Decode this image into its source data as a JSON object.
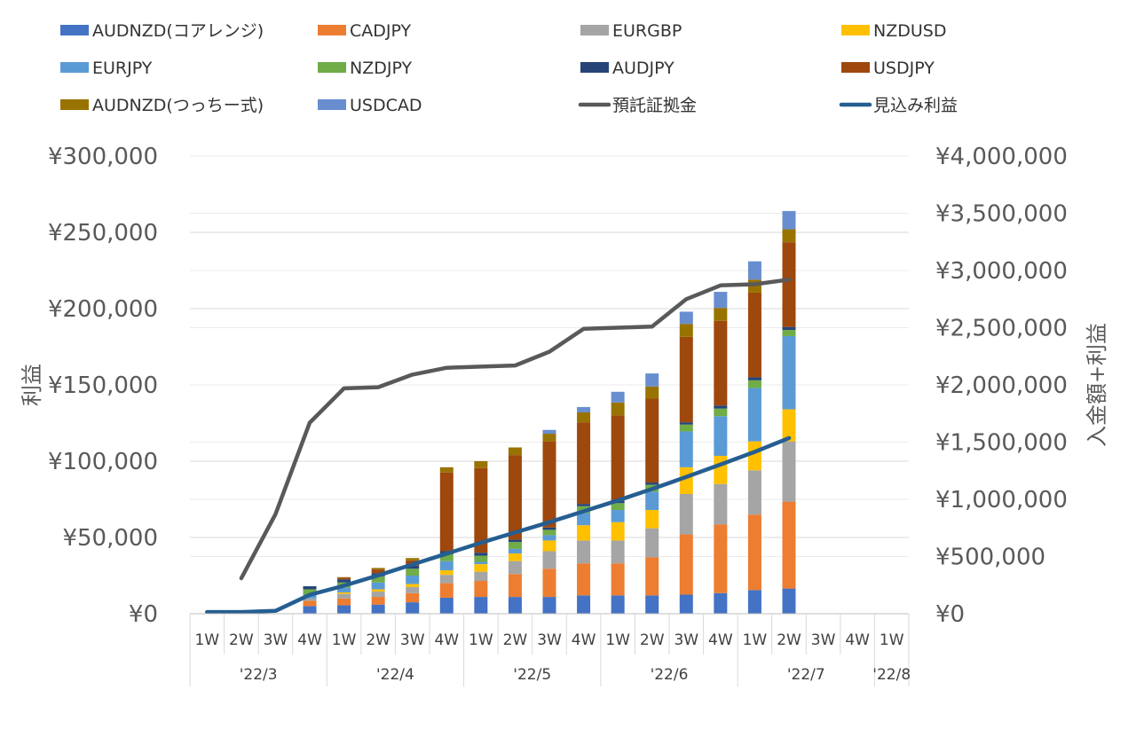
{
  "chart_data": {
    "type": "bar",
    "stacked": true,
    "x_weeks": [
      "1W",
      "2W",
      "3W",
      "4W",
      "1W",
      "2W",
      "3W",
      "4W",
      "1W",
      "2W",
      "3W",
      "4W",
      "1W",
      "2W",
      "3W",
      "4W",
      "1W",
      "2W",
      "3W",
      "4W",
      "1W"
    ],
    "months": [
      {
        "label": "'22/3",
        "start": 0,
        "count": 4
      },
      {
        "label": "'22/4",
        "start": 4,
        "count": 4
      },
      {
        "label": "'22/5",
        "start": 8,
        "count": 4
      },
      {
        "label": "'22/6",
        "start": 12,
        "count": 4
      },
      {
        "label": "'22/7",
        "start": 16,
        "count": 4
      },
      {
        "label": "'22/8",
        "start": 20,
        "count": 1
      }
    ],
    "ylabel_left": "利益",
    "ylabel_right": "入金額+利益",
    "yticks_left": [
      "¥0",
      "¥50,000",
      "¥100,000",
      "¥150,000",
      "¥200,000",
      "¥250,000",
      "¥300,000"
    ],
    "yticks_right": [
      "¥0",
      "¥500,000",
      "¥1,000,000",
      "¥1,500,000",
      "¥2,000,000",
      "¥2,500,000",
      "¥3,000,000",
      "¥3,500,000",
      "¥4,000,000"
    ],
    "ylim_left": [
      0,
      300000
    ],
    "ylim_right": [
      0,
      4000000
    ],
    "legend_position": "top",
    "gridlines": true,
    "bar_series": [
      {
        "name": "AUDNZD(コアレンジ)",
        "color": "#4472C4",
        "values": [
          0,
          0,
          0,
          5000,
          5500,
          6000,
          7500,
          10500,
          11000,
          11000,
          11000,
          12000,
          12000,
          12000,
          12500,
          13500,
          15500,
          16500,
          0,
          0,
          0
        ]
      },
      {
        "name": "CADJPY",
        "color": "#ED7D31",
        "values": [
          0,
          0,
          0,
          3500,
          4500,
          5000,
          6000,
          9500,
          10500,
          15000,
          18500,
          21000,
          21000,
          25000,
          39500,
          45000,
          49500,
          57000,
          0,
          0,
          0
        ]
      },
      {
        "name": "EURGBP",
        "color": "#A5A5A5",
        "values": [
          0,
          0,
          0,
          1500,
          3000,
          3500,
          4000,
          5500,
          6000,
          8500,
          11500,
          15000,
          15000,
          19000,
          26500,
          26500,
          29000,
          39500,
          0,
          0,
          0
        ]
      },
      {
        "name": "NZDUSD",
        "color": "#FFC000",
        "values": [
          0,
          0,
          0,
          0,
          1000,
          1500,
          2000,
          3000,
          5000,
          5000,
          7000,
          10000,
          12000,
          12000,
          17500,
          18500,
          19000,
          21000,
          0,
          0,
          0
        ]
      },
      {
        "name": "EURJPY",
        "color": "#5B9BD5",
        "values": [
          0,
          0,
          0,
          2500,
          3000,
          4500,
          5500,
          6000,
          1500,
          3000,
          3500,
          8000,
          8000,
          12000,
          23500,
          26000,
          35000,
          48000,
          0,
          0,
          0
        ]
      },
      {
        "name": "NZDJPY",
        "color": "#70AD47",
        "values": [
          0,
          0,
          0,
          3500,
          3500,
          4000,
          4500,
          4500,
          4000,
          4500,
          3500,
          4500,
          4500,
          4500,
          4500,
          5000,
          5000,
          4000,
          0,
          0,
          0
        ]
      },
      {
        "name": "AUDJPY",
        "color": "#264478",
        "values": [
          0,
          0,
          0,
          2000,
          2000,
          2000,
          2000,
          2000,
          2000,
          1500,
          1500,
          1500,
          1500,
          1500,
          1500,
          2000,
          2000,
          2000,
          0,
          0,
          0
        ]
      },
      {
        "name": "USDJPY",
        "color": "#9E480E",
        "values": [
          0,
          0,
          0,
          0,
          1000,
          2500,
          3500,
          51500,
          55500,
          55500,
          56500,
          53500,
          56000,
          55000,
          56000,
          55500,
          55500,
          55500,
          0,
          0,
          0
        ]
      },
      {
        "name": "AUDNZD(つっちー式)",
        "color": "#997300",
        "values": [
          0,
          0,
          0,
          0,
          500,
          1000,
          1500,
          3500,
          4500,
          5000,
          5000,
          6500,
          8500,
          8000,
          8500,
          8500,
          8500,
          8500,
          0,
          0,
          0
        ]
      },
      {
        "name": "USDCAD",
        "color": "#698ED0",
        "values": [
          0,
          0,
          0,
          0,
          0,
          0,
          0,
          0,
          0,
          0,
          2500,
          3500,
          7000,
          8500,
          8000,
          10500,
          12000,
          12000,
          0,
          0,
          0
        ]
      }
    ],
    "line_series": [
      {
        "name": "預託証拠金",
        "color": "#595959",
        "values": [
          null,
          310000,
          870000,
          1670000,
          1970000,
          1980000,
          2090000,
          2150000,
          2160000,
          2170000,
          2290000,
          2490000,
          2500000,
          2510000,
          2750000,
          2870000,
          2880000,
          2920000,
          null,
          null,
          null
        ]
      },
      {
        "name": "見込み利益",
        "color": "#255E91",
        "values": [
          15000,
          15000,
          25000,
          165000,
          245000,
          335000,
          430000,
          525000,
          620000,
          710000,
          800000,
          895000,
          990000,
          1090000,
          1195000,
          1305000,
          1415000,
          1535000,
          null,
          null,
          null
        ]
      }
    ]
  }
}
